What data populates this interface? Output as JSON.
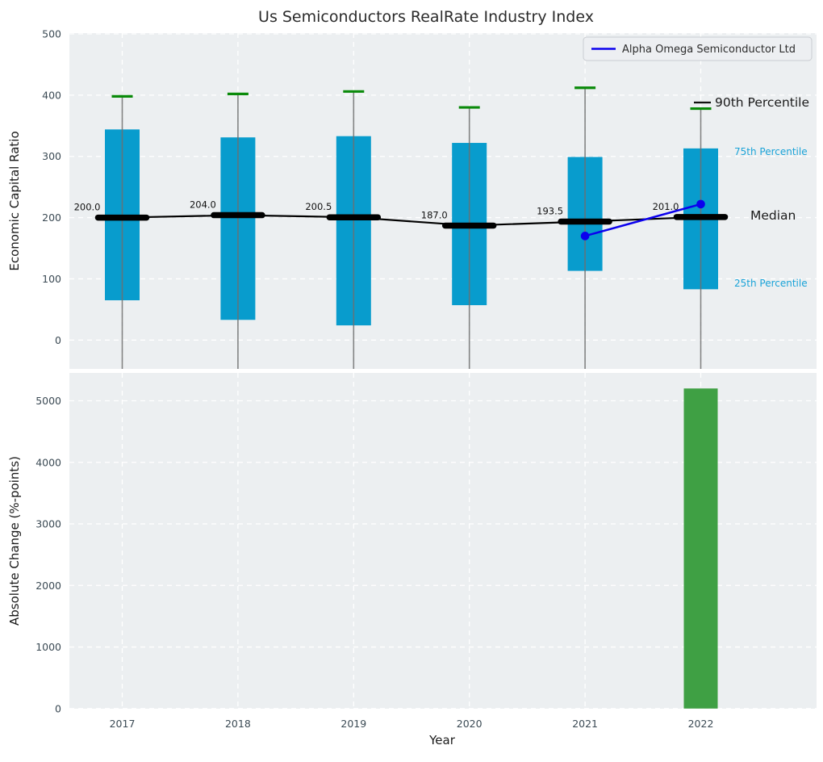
{
  "title": "Us Semiconductors RealRate Industry Index",
  "legend": {
    "label": "Alpha Omega Semiconductor Ltd"
  },
  "annotations": {
    "p90": "90th Percentile",
    "p75": "75th Percentile",
    "median": "Median",
    "p25": "25th Percentile"
  },
  "colors": {
    "box_fill": "#089ccd",
    "cap_green": "#0a8a0a",
    "bar_green": "#3fa044",
    "company_blue": "#0b00ee",
    "median_black": "#000000",
    "whisker_gray": "#6e6e6e",
    "plot_bg": "#eceff1",
    "grid": "#ffffff",
    "tick_text": "#3b4a54",
    "percentile_cyan": "#1aa3d8",
    "title_text": "#2b2b2b"
  },
  "chart_data": [
    {
      "type": "box-percentile",
      "title": "Us Semiconductors RealRate Industry Index",
      "ylabel": "Economic Capital Ratio",
      "yticks": [
        0,
        100,
        200,
        300,
        400,
        500
      ],
      "ylim": [
        -47,
        502
      ],
      "grid": true,
      "legend_position": "upper right",
      "categories": [
        "2017",
        "2018",
        "2019",
        "2020",
        "2021",
        "2022"
      ],
      "series": [
        {
          "year": "2017",
          "p90": 398,
          "p75": 344,
          "median": 200.0,
          "p25": 65,
          "median_label": "200.0"
        },
        {
          "year": "2018",
          "p90": 402,
          "p75": 331,
          "median": 204.0,
          "p25": 33,
          "median_label": "204.0"
        },
        {
          "year": "2019",
          "p90": 406,
          "p75": 333,
          "median": 200.5,
          "p25": 24,
          "median_label": "200.5"
        },
        {
          "year": "2020",
          "p90": 380,
          "p75": 322,
          "median": 187.0,
          "p25": 57,
          "median_label": "187.0"
        },
        {
          "year": "2021",
          "p90": 412,
          "p75": 299,
          "median": 193.5,
          "p25": 113,
          "median_label": "193.5"
        },
        {
          "year": "2022",
          "p90": 378,
          "p75": 313,
          "median": 201.0,
          "p25": 83,
          "median_label": "201.0"
        }
      ],
      "company_line": {
        "name": "Alpha Omega Semiconductor Ltd",
        "points": [
          {
            "year": "2021",
            "value": 170
          },
          {
            "year": "2022",
            "value": 222
          }
        ]
      }
    },
    {
      "type": "bar",
      "xlabel": "Year",
      "ylabel": "Absolute Change (%-points)",
      "yticks": [
        0,
        1000,
        2000,
        3000,
        4000,
        5000
      ],
      "ylim": [
        0,
        5455
      ],
      "grid": true,
      "categories": [
        "2017",
        "2018",
        "2019",
        "2020",
        "2021",
        "2022"
      ],
      "values": [
        null,
        null,
        null,
        null,
        null,
        5200
      ]
    }
  ]
}
